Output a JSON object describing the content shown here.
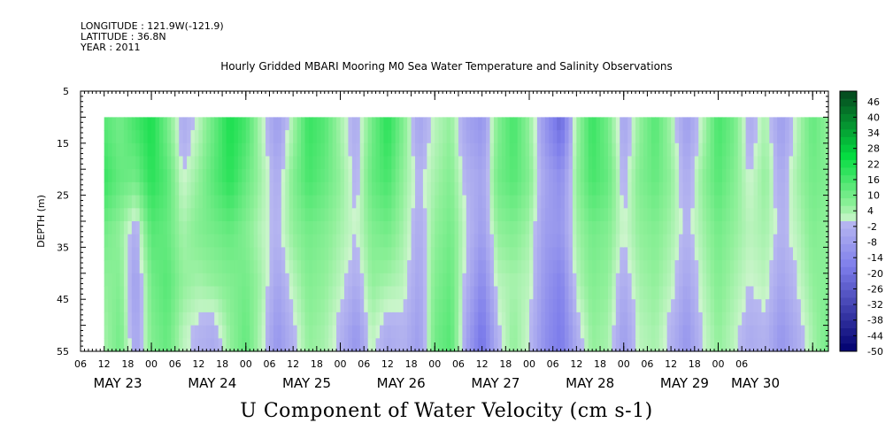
{
  "header": {
    "longitude": "LONGITUDE : 121.9W(-121.9)",
    "latitude": "LATITUDE : 36.8N",
    "year": "YEAR : 2011"
  },
  "chart_data": {
    "type": "heatmap",
    "title": "Hourly Gridded MBARI Mooring M0 Sea Water Temperature and Salinity Observations",
    "bottom_title": "U Component of Water Velocity (cm s-1)",
    "ylabel": "DEPTH (m)",
    "xlabel": "",
    "ylim": [
      5,
      55
    ],
    "y_inverted": true,
    "y_ticks": [
      5,
      15,
      25,
      35,
      45,
      55
    ],
    "data_depth_range": [
      10,
      55
    ],
    "x_hour_range": [
      0,
      190
    ],
    "data_start_hour": 6,
    "x_hour_tick_labels": [
      "06",
      "12",
      "18",
      "00",
      "06",
      "12",
      "18",
      "00",
      "06",
      "12",
      "18",
      "00",
      "06",
      "12",
      "18",
      "00",
      "06",
      "12",
      "18",
      "00",
      "06",
      "12",
      "18",
      "00",
      "06",
      "12",
      "18",
      "00",
      "06"
    ],
    "date_labels": [
      {
        "label": "MAY 23",
        "hour": 0
      },
      {
        "label": "MAY 24",
        "hour": 24
      },
      {
        "label": "MAY 25",
        "hour": 48
      },
      {
        "label": "MAY 26",
        "hour": 72
      },
      {
        "label": "MAY 27",
        "hour": 96
      },
      {
        "label": "MAY 28",
        "hour": 120
      },
      {
        "label": "MAY 29",
        "hour": 144
      },
      {
        "label": "MAY 30",
        "hour": 162
      }
    ],
    "colorbar": {
      "min": -50,
      "max": 50,
      "labels": [
        "46",
        "40",
        "34",
        "28",
        "22",
        "16",
        "10",
        "4",
        "-2",
        "-8",
        "-14",
        "-20",
        "-26",
        "-32",
        "-38",
        "-44",
        "-50"
      ]
    },
    "u_profile": {
      "depths": [
        12,
        22,
        32,
        42,
        52
      ],
      "hours": [
        6,
        10,
        14,
        18,
        22,
        26,
        30,
        34,
        38,
        42,
        46,
        50,
        54,
        58,
        62,
        66,
        70,
        74,
        78,
        82,
        86,
        90,
        94,
        98,
        102,
        106,
        110,
        114,
        118,
        122,
        126,
        130,
        134,
        138,
        142,
        146,
        150,
        154,
        158,
        162,
        166,
        170,
        174,
        178,
        182,
        186,
        190
      ],
      "values": [
        [
          14,
          10,
          16,
          22,
          10,
          -4,
          2,
          12,
          22,
          16,
          2,
          -8,
          4,
          18,
          14,
          4,
          -4,
          10,
          20,
          8,
          -6,
          2,
          6,
          -6,
          -10,
          8,
          16,
          6,
          -10,
          -22,
          4,
          18,
          10,
          -6,
          6,
          14,
          4,
          -8,
          2,
          16,
          10,
          -4,
          4,
          -8,
          2,
          12,
          6
        ],
        [
          18,
          12,
          10,
          20,
          14,
          0,
          6,
          14,
          20,
          12,
          4,
          -4,
          8,
          16,
          12,
          6,
          -2,
          12,
          16,
          6,
          -2,
          4,
          8,
          -2,
          -6,
          10,
          14,
          8,
          -6,
          -12,
          6,
          16,
          12,
          -2,
          8,
          12,
          6,
          -4,
          6,
          14,
          8,
          0,
          6,
          -4,
          4,
          10,
          8
        ],
        [
          10,
          6,
          -4,
          14,
          12,
          4,
          8,
          10,
          12,
          8,
          2,
          -2,
          6,
          10,
          8,
          4,
          0,
          8,
          10,
          4,
          -4,
          6,
          10,
          0,
          -8,
          6,
          8,
          4,
          -8,
          -10,
          4,
          10,
          8,
          0,
          6,
          8,
          4,
          -2,
          4,
          10,
          6,
          2,
          4,
          -2,
          2,
          8,
          6
        ],
        [
          6,
          8,
          -8,
          10,
          14,
          6,
          4,
          6,
          8,
          10,
          4,
          -6,
          2,
          8,
          6,
          2,
          -4,
          6,
          4,
          2,
          -6,
          8,
          12,
          -2,
          -14,
          2,
          4,
          2,
          -10,
          -16,
          2,
          8,
          6,
          -4,
          4,
          6,
          2,
          -6,
          2,
          8,
          4,
          0,
          2,
          -6,
          0,
          6,
          8
        ],
        [
          4,
          10,
          -6,
          8,
          12,
          2,
          -2,
          -4,
          6,
          12,
          2,
          -10,
          -2,
          6,
          4,
          -2,
          -10,
          2,
          -4,
          -2,
          -8,
          10,
          14,
          -6,
          -20,
          -2,
          6,
          0,
          -12,
          -18,
          -4,
          6,
          4,
          -8,
          2,
          4,
          -2,
          -10,
          0,
          6,
          2,
          -4,
          -2,
          -10,
          -4,
          4,
          10
        ]
      ]
    }
  }
}
